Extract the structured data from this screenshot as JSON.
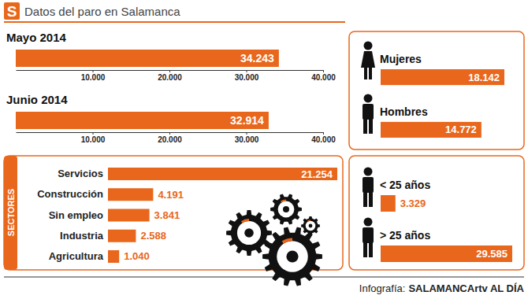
{
  "header": {
    "logo": "S",
    "title": "Datos del paro en Salamanca"
  },
  "chart_data": [
    {
      "type": "bar",
      "orientation": "horizontal",
      "title": "Mayo 2014",
      "categories": [
        null
      ],
      "values": [
        34243
      ],
      "value_labels": [
        "34.243"
      ],
      "color": "#e8671c",
      "xlim": [
        0,
        40000
      ],
      "xticks": [
        {
          "value": 10000,
          "label": "10.000"
        },
        {
          "value": 20000,
          "label": "20.000"
        },
        {
          "value": 30000,
          "label": "30.000"
        },
        {
          "value": 40000,
          "label": "40.000"
        }
      ],
      "data_labels": true,
      "tick_labels": "x"
    },
    {
      "type": "bar",
      "orientation": "horizontal",
      "title": "Junio 2014",
      "categories": [
        null
      ],
      "values": [
        32914
      ],
      "value_labels": [
        "32.914"
      ],
      "color": "#e8671c",
      "xlim": [
        0,
        40000
      ],
      "xticks": [
        {
          "value": 10000,
          "label": "10.000"
        },
        {
          "value": 20000,
          "label": "20.000"
        },
        {
          "value": 30000,
          "label": "30.000"
        },
        {
          "value": 40000,
          "label": "40.000"
        }
      ],
      "data_labels": true,
      "tick_labels": "x"
    },
    {
      "type": "bar",
      "orientation": "horizontal",
      "title": "SECTORES",
      "categories": [
        "Servicios",
        "Construcción",
        "Sin empleo",
        "Industria",
        "Agricultura"
      ],
      "values": [
        21254,
        4191,
        3841,
        2588,
        1040
      ],
      "value_labels": [
        "21.254",
        "4.191",
        "3.841",
        "2.588",
        "1.040"
      ],
      "color": "#e8671c",
      "data_labels": true,
      "tick_labels": "y"
    },
    {
      "type": "bar",
      "orientation": "horizontal",
      "categories": [
        "Mujeres",
        "Hombres"
      ],
      "values": [
        18142,
        14772
      ],
      "value_labels": [
        "18.142",
        "14.772"
      ],
      "color": "#e8671c",
      "data_labels": true,
      "tick_labels": "y"
    },
    {
      "type": "bar",
      "orientation": "horizontal",
      "categories": [
        "< 25 años",
        "> 25 años"
      ],
      "values": [
        3329,
        29585
      ],
      "value_labels": [
        "3.329",
        "29.585"
      ],
      "color": "#e8671c",
      "data_labels": true,
      "tick_labels": "y"
    }
  ],
  "footer": {
    "label": "Infografía:",
    "source": "SALAMANCArtv AL DÍA"
  }
}
